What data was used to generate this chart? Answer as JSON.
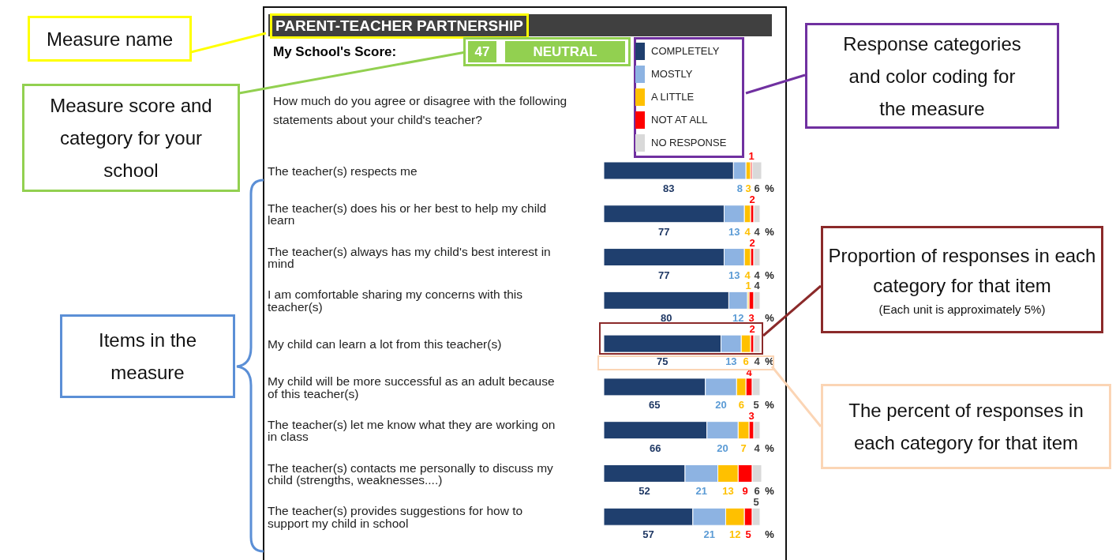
{
  "chart_data": {
    "type": "bar",
    "orientation": "horizontal",
    "stacked": true,
    "data_labels": true,
    "legend": "top right",
    "title": "PARENT-TEACHER PARTNERSHIP",
    "subtitle": "How much do you agree or disagree with the following statements about your child's teacher?",
    "categories": [
      "The teacher(s) respects me",
      "The teacher(s) does his or her best to help my child learn",
      "The teacher(s) always has my child's best interest in mind",
      "I am comfortable sharing my concerns with this teacher(s)",
      "My child can learn a lot from this teacher(s)",
      "My child will be more successful as an adult because of this teacher(s)",
      "The teacher(s) let me know what they are working on in class",
      "The teacher(s) contacts me personally to discuss my child (strengths, weaknesses....)",
      "The teacher(s) provides suggestions for how to support my child in school"
    ],
    "series": [
      {
        "name": "COMPLETELY",
        "color": "#1f3f6e",
        "values": [
          83,
          77,
          77,
          80,
          75,
          65,
          66,
          52,
          57
        ]
      },
      {
        "name": "MOSTLY",
        "color": "#8db3e2",
        "values": [
          8,
          13,
          13,
          12,
          13,
          20,
          20,
          21,
          21
        ]
      },
      {
        "name": "A LITTLE",
        "color": "#ffc000",
        "values": [
          3,
          4,
          4,
          1,
          6,
          6,
          7,
          13,
          12
        ]
      },
      {
        "name": "NOT AT ALL",
        "color": "#ff0000",
        "values": [
          1,
          2,
          2,
          3,
          2,
          4,
          3,
          9,
          5
        ]
      },
      {
        "name": "NO RESPONSE",
        "color": "#d9d9d9",
        "values": [
          6,
          4,
          4,
          4,
          4,
          5,
          4,
          6,
          5
        ]
      }
    ],
    "annotations": [
      "My School's Score:",
      "47",
      "NEUTRAL",
      "Measure name",
      "Measure score and category for your school",
      "Response categories and color coding for the measure",
      "Items in the measure",
      "Proportion of responses in each category for that item",
      "(Each unit is approximately 5%)",
      "The percent of responses in each category for that item",
      "%"
    ]
  }
}
